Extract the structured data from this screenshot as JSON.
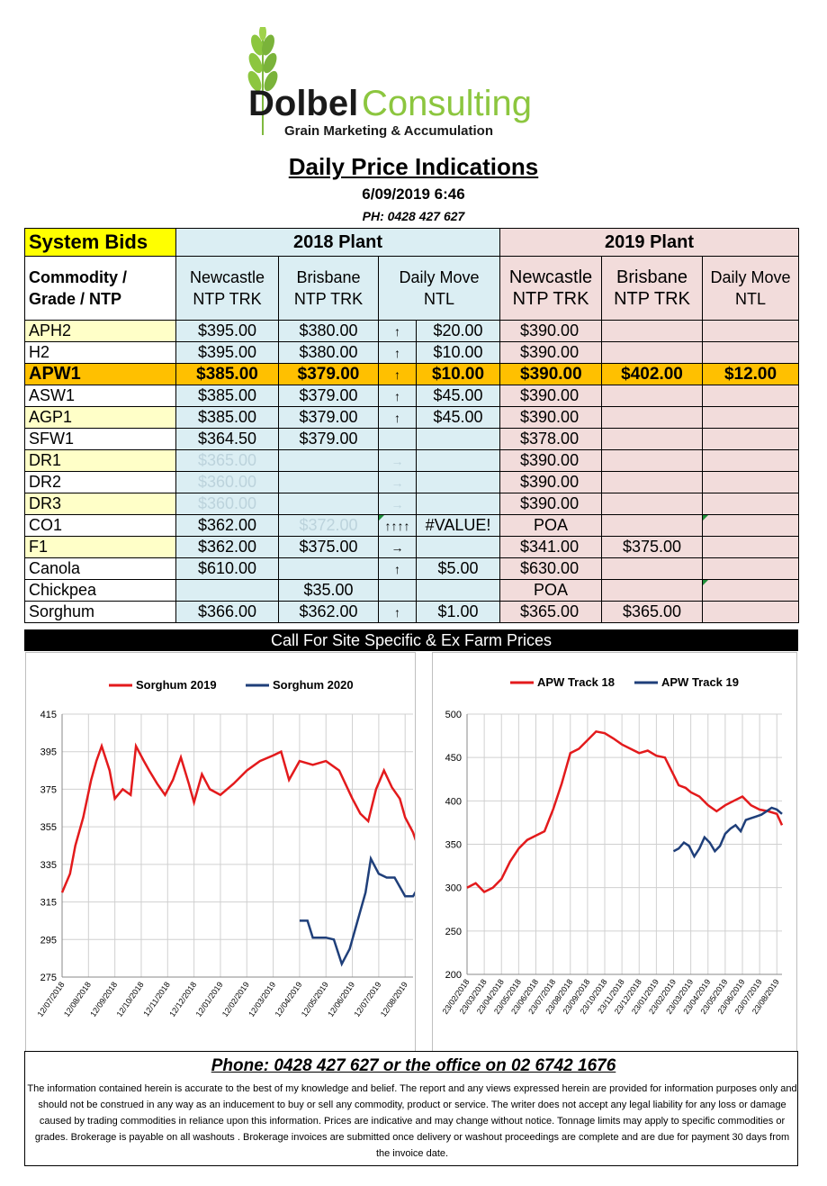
{
  "brand": {
    "name_part1": "Dolbel",
    "name_part2": "Consulting",
    "tagline": "Grain Marketing & Accumulation"
  },
  "header": {
    "title": "Daily Price Indications",
    "datetime": "6/09/2019 6:46",
    "phone": "PH: 0428 427 627"
  },
  "table": {
    "system_bids": "System Bids",
    "plant_2018": "2018 Plant",
    "plant_2019": "2019 Plant",
    "col_commodity": "Commodity / Grade / NTP",
    "col_newcastle": "Newcastle NTP TRK",
    "col_brisbane": "Brisbane NTP TRK",
    "col_daily_move": "Daily Move NTL",
    "col_newcastle_19": "Newcastle NTP TRK",
    "col_brisbane_19": "Brisbane NTP TRK",
    "col_daily_move_19": "Daily Move NTL",
    "rows": [
      {
        "name": "APH2",
        "n18": "$395.00",
        "b18": "$380.00",
        "arrow": "↑",
        "move": "$20.00",
        "n19": "$390.00",
        "b19": "",
        "move19": ""
      },
      {
        "name": "H2",
        "n18": "$395.00",
        "b18": "$380.00",
        "arrow": "↑",
        "move": "$10.00",
        "n19": "$390.00",
        "b19": "",
        "move19": ""
      },
      {
        "name": "APW1",
        "n18": "$385.00",
        "b18": "$379.00",
        "arrow": "↑",
        "move": "$10.00",
        "n19": "$390.00",
        "b19": "$402.00",
        "move19": "$12.00"
      },
      {
        "name": "ASW1",
        "n18": "$385.00",
        "b18": "$379.00",
        "arrow": "↑",
        "move": "$45.00",
        "n19": "$390.00",
        "b19": "",
        "move19": ""
      },
      {
        "name": "AGP1",
        "n18": "$385.00",
        "b18": "$379.00",
        "arrow": "↑",
        "move": "$45.00",
        "n19": "$390.00",
        "b19": "",
        "move19": ""
      },
      {
        "name": "SFW1",
        "n18": "$364.50",
        "b18": "$379.00",
        "arrow": "",
        "move": "",
        "n19": "$378.00",
        "b19": "",
        "move19": ""
      },
      {
        "name": "DR1",
        "n18": "$365.00",
        "b18": "",
        "arrow": "→",
        "move": "",
        "n19": "$390.00",
        "b19": "",
        "move19": ""
      },
      {
        "name": "DR2",
        "n18": "$360.00",
        "b18": "",
        "arrow": "→",
        "move": "",
        "n19": "$390.00",
        "b19": "",
        "move19": ""
      },
      {
        "name": "DR3",
        "n18": "$360.00",
        "b18": "",
        "arrow": "→",
        "move": "",
        "n19": "$390.00",
        "b19": "",
        "move19": ""
      },
      {
        "name": "CO1",
        "n18": "$362.00",
        "b18": "$372.00",
        "arrow": "↑↑↑↑",
        "move": "#VALUE!",
        "n19": "POA",
        "b19": "",
        "move19": ""
      },
      {
        "name": "F1",
        "n18": "$362.00",
        "b18": "$375.00",
        "arrow": "→",
        "move": "",
        "n19": "$341.00",
        "b19": "$375.00",
        "move19": ""
      },
      {
        "name": "Canola",
        "n18": "$610.00",
        "b18": "",
        "arrow": "↑",
        "move": "$5.00",
        "n19": "$630.00",
        "b19": "",
        "move19": ""
      },
      {
        "name": "Chickpea",
        "n18": "",
        "b18": "$35.00",
        "arrow": "",
        "move": "",
        "n19": "POA",
        "b19": "",
        "move19": ""
      },
      {
        "name": "Sorghum",
        "n18": "$366.00",
        "b18": "$362.00",
        "arrow": "↑",
        "move": "$1.00",
        "n19": "$365.00",
        "b19": "$365.00",
        "move19": ""
      }
    ]
  },
  "call_bar": "Call For Site Specific & Ex Farm Prices",
  "chart_data": [
    {
      "type": "line",
      "title": "",
      "ylim": [
        275,
        415
      ],
      "yticks": [
        "415",
        "395",
        "375",
        "355",
        "335",
        "315",
        "295",
        "275"
      ],
      "xticks": [
        "12/07/2018",
        "12/08/2018",
        "12/09/2018",
        "12/10/2018",
        "12/11/2018",
        "12/12/2018",
        "12/01/2019",
        "12/02/2019",
        "12/03/2019",
        "12/04/2019",
        "12/05/2019",
        "12/06/2019",
        "12/07/2019",
        "12/08/2019"
      ],
      "series": [
        {
          "name": "Sorghum 2019",
          "color": "#e31a1c",
          "points": [
            [
              0,
              320
            ],
            [
              0.3,
              330
            ],
            [
              0.5,
              345
            ],
            [
              0.8,
              360
            ],
            [
              1.1,
              380
            ],
            [
              1.3,
              390
            ],
            [
              1.5,
              398
            ],
            [
              1.8,
              385
            ],
            [
              2.0,
              370
            ],
            [
              2.3,
              375
            ],
            [
              2.6,
              372
            ],
            [
              2.8,
              398
            ],
            [
              3.1,
              390
            ],
            [
              3.3,
              385
            ],
            [
              3.6,
              378
            ],
            [
              3.9,
              372
            ],
            [
              4.2,
              380
            ],
            [
              4.5,
              392
            ],
            [
              4.8,
              378
            ],
            [
              5.0,
              368
            ],
            [
              5.3,
              383
            ],
            [
              5.6,
              375
            ],
            [
              6.0,
              372
            ],
            [
              6.5,
              378
            ],
            [
              7.0,
              385
            ],
            [
              7.5,
              390
            ],
            [
              8.0,
              393
            ],
            [
              8.3,
              395
            ],
            [
              8.6,
              380
            ],
            [
              9.0,
              390
            ],
            [
              9.5,
              388
            ],
            [
              10.0,
              390
            ],
            [
              10.5,
              385
            ],
            [
              11.0,
              370
            ],
            [
              11.3,
              362
            ],
            [
              11.6,
              358
            ],
            [
              11.9,
              375
            ],
            [
              12.2,
              385
            ],
            [
              12.5,
              376
            ],
            [
              12.8,
              370
            ],
            [
              13.0,
              360
            ],
            [
              13.3,
              352
            ],
            [
              13.6,
              340
            ],
            [
              14.0,
              342
            ],
            [
              14.3,
              350
            ],
            [
              14.6,
              355
            ],
            [
              15.0,
              362
            ],
            [
              15.3,
              366
            ]
          ]
        },
        {
          "name": "Sorghum 2020",
          "color": "#1f3f7a",
          "points": [
            [
              9.0,
              305
            ],
            [
              9.3,
              305
            ],
            [
              9.5,
              296
            ],
            [
              9.8,
              296
            ],
            [
              10.0,
              296
            ],
            [
              10.3,
              295
            ],
            [
              10.6,
              282
            ],
            [
              10.9,
              290
            ],
            [
              11.2,
              305
            ],
            [
              11.5,
              320
            ],
            [
              11.7,
              338
            ],
            [
              12.0,
              330
            ],
            [
              12.3,
              328
            ],
            [
              12.6,
              328
            ],
            [
              13.0,
              318
            ],
            [
              13.3,
              318
            ],
            [
              13.6,
              325
            ],
            [
              13.9,
              335
            ],
            [
              14.2,
              340
            ],
            [
              14.5,
              345
            ],
            [
              14.8,
              355
            ],
            [
              15.0,
              360
            ],
            [
              15.3,
              366
            ]
          ]
        }
      ]
    },
    {
      "type": "line",
      "title": "",
      "ylim": [
        200,
        500
      ],
      "yticks": [
        "500",
        "450",
        "400",
        "350",
        "300",
        "250",
        "200"
      ],
      "xticks": [
        "23/02/2018",
        "23/03/2018",
        "23/04/2018",
        "23/05/2018",
        "23/06/2018",
        "23/07/2018",
        "23/08/2018",
        "23/09/2018",
        "23/10/2018",
        "23/11/2018",
        "23/12/2018",
        "23/01/2019",
        "23/02/2019",
        "23/03/2019",
        "23/04/2019",
        "23/05/2019",
        "23/06/2019",
        "23/07/2019",
        "23/08/2019"
      ],
      "series": [
        {
          "name": "APW Track 18",
          "color": "#e31a1c",
          "points": [
            [
              0,
              300
            ],
            [
              0.5,
              305
            ],
            [
              1.0,
              295
            ],
            [
              1.5,
              300
            ],
            [
              2.0,
              310
            ],
            [
              2.5,
              330
            ],
            [
              3.0,
              345
            ],
            [
              3.5,
              355
            ],
            [
              4.0,
              360
            ],
            [
              4.5,
              365
            ],
            [
              5.0,
              390
            ],
            [
              5.5,
              420
            ],
            [
              6.0,
              455
            ],
            [
              6.5,
              460
            ],
            [
              7.0,
              470
            ],
            [
              7.5,
              480
            ],
            [
              8.0,
              478
            ],
            [
              8.5,
              472
            ],
            [
              9.0,
              465
            ],
            [
              9.5,
              460
            ],
            [
              10.0,
              455
            ],
            [
              10.5,
              458
            ],
            [
              11.0,
              452
            ],
            [
              11.5,
              450
            ],
            [
              12.0,
              430
            ],
            [
              12.3,
              418
            ],
            [
              12.7,
              415
            ],
            [
              13.0,
              410
            ],
            [
              13.5,
              405
            ],
            [
              14.0,
              395
            ],
            [
              14.5,
              388
            ],
            [
              15.0,
              395
            ],
            [
              15.5,
              400
            ],
            [
              16.0,
              405
            ],
            [
              16.5,
              395
            ],
            [
              17.0,
              390
            ],
            [
              17.5,
              388
            ],
            [
              18.0,
              385
            ],
            [
              18.3,
              372
            ]
          ]
        },
        {
          "name": "APW Track 19",
          "color": "#1f3f7a",
          "points": [
            [
              12.0,
              342
            ],
            [
              12.3,
              345
            ],
            [
              12.6,
              352
            ],
            [
              12.9,
              348
            ],
            [
              13.2,
              336
            ],
            [
              13.5,
              345
            ],
            [
              13.8,
              358
            ],
            [
              14.1,
              352
            ],
            [
              14.4,
              342
            ],
            [
              14.7,
              348
            ],
            [
              15.0,
              362
            ],
            [
              15.3,
              368
            ],
            [
              15.6,
              372
            ],
            [
              15.9,
              365
            ],
            [
              16.2,
              378
            ],
            [
              16.5,
              380
            ],
            [
              16.8,
              382
            ],
            [
              17.1,
              384
            ],
            [
              17.4,
              388
            ],
            [
              17.7,
              392
            ],
            [
              18.0,
              390
            ],
            [
              18.3,
              385
            ]
          ]
        }
      ]
    }
  ],
  "footer": {
    "phone": "Phone: 0428 427 627 or the office on 02 6742 1676",
    "disclaimer": "The information contained herein is accurate to the best of my knowledge and belief.  The report and any views expressed herein are provided for information purposes only and should not be construed in any way as an inducement to buy or sell any commodity, product or service. The writer does not accept any legal liability for any loss or damage caused by trading commodities in reliance upon this information. Prices are indicative and may change without notice. Tonnage limits may apply to specific commodities or grades.  Brokerage is payable on all washouts . Brokerage invoices are submitted once delivery or washout proceedings are complete and are due for payment 30 days from the invoice date."
  }
}
